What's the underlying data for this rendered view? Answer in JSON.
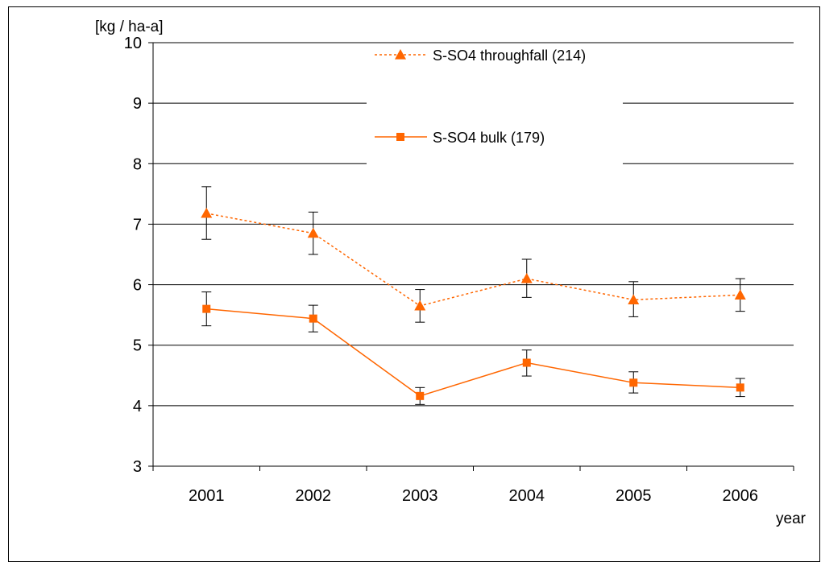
{
  "chart_data": {
    "type": "line",
    "ylabel": "[kg / ha-a]",
    "xlabel": "year",
    "ylim": [
      3,
      10
    ],
    "yticks": [
      3,
      4,
      5,
      6,
      7,
      8,
      9,
      10
    ],
    "categories": [
      "2001",
      "2002",
      "2003",
      "2004",
      "2005",
      "2006"
    ],
    "grid": "horizontal",
    "legend_position": "top-center",
    "series": [
      {
        "name": "S-SO4 throughfall (214)",
        "marker": "triangle",
        "line_style": "dotted",
        "color": "#FF6600",
        "values": [
          7.18,
          6.85,
          5.65,
          6.1,
          5.75,
          5.83
        ],
        "err_low": [
          6.75,
          6.5,
          5.38,
          5.79,
          5.47,
          5.56
        ],
        "err_high": [
          7.62,
          7.2,
          5.92,
          6.42,
          6.05,
          6.1
        ]
      },
      {
        "name": "S-SO4 bulk (179)",
        "marker": "square",
        "line_style": "solid",
        "color": "#FF6600",
        "values": [
          5.6,
          5.44,
          4.16,
          4.71,
          4.38,
          4.3
        ],
        "err_low": [
          5.32,
          5.22,
          4.02,
          4.49,
          4.21,
          4.15
        ],
        "err_high": [
          5.88,
          5.66,
          4.3,
          4.92,
          4.56,
          4.45
        ]
      }
    ]
  }
}
